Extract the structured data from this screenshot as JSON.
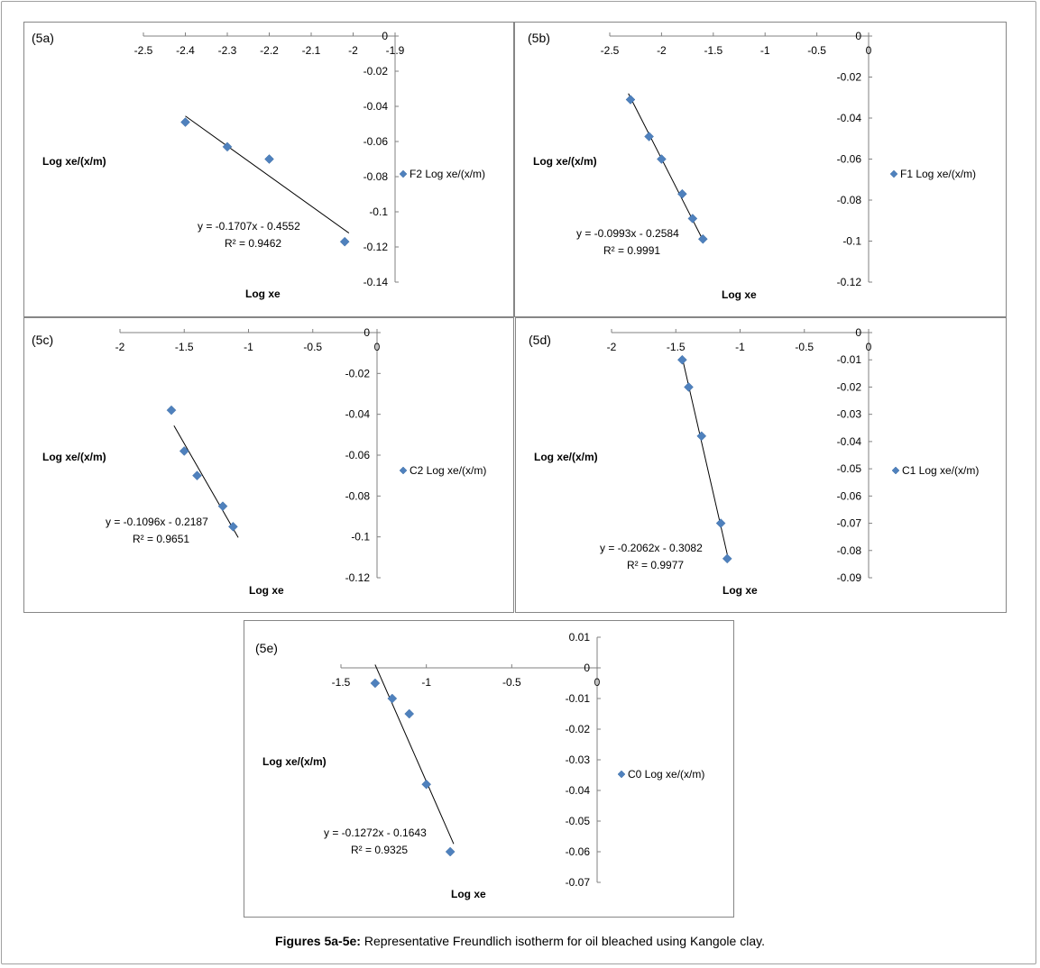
{
  "caption": {
    "label": "Figures 5a-5e:",
    "text": " Representative Freundlich isotherm for oil bleached using Kangole clay."
  },
  "colors": {
    "marker": "#4f81bd",
    "marker_stroke": "#3a6aa3",
    "axis": "#808080",
    "line": "#000000"
  },
  "chart_data": [
    {
      "id": "5a",
      "type": "scatter",
      "panel_label": "(5a)",
      "xlabel": "Log xe",
      "ylabel": "Log xe/(x/m)",
      "xlim": [
        -2.5,
        -1.9
      ],
      "ylim": [
        -0.14,
        0
      ],
      "x_ticks": [
        "-2.5",
        "-2.4",
        "-2.3",
        "-2.2",
        "-2.1",
        "-2",
        "-1.9"
      ],
      "y_ticks": [
        "0",
        "-0.02",
        "-0.04",
        "-0.06",
        "-0.08",
        "-0.1",
        "-0.12",
        "-0.14"
      ],
      "series": [
        {
          "name": "F2 Log xe/(x/m)",
          "x": [
            -2.4,
            -2.3,
            -2.2,
            -2.02
          ],
          "y": [
            -0.049,
            -0.063,
            -0.07,
            -0.117
          ]
        }
      ],
      "trendline": {
        "equation": "y = -0.1707x - 0.4552",
        "r2": "R² = 0.9462",
        "slope": -0.1707,
        "intercept": -0.4552,
        "x_range": [
          -2.4,
          -2.01
        ]
      }
    },
    {
      "id": "5b",
      "type": "scatter",
      "panel_label": "(5b)",
      "xlabel": "Log xe",
      "ylabel": "Log xe/(x/m)",
      "xlim": [
        -2.5,
        0
      ],
      "ylim": [
        -0.12,
        0
      ],
      "x_ticks": [
        "-2.5",
        "-2",
        "-1.5",
        "-1",
        "-0.5",
        "0"
      ],
      "y_ticks": [
        "0",
        "-0.02",
        "-0.04",
        "-0.06",
        "-0.08",
        "-0.1",
        "-0.12"
      ],
      "series": [
        {
          "name": "F1 Log xe/(x/m)",
          "x": [
            -2.3,
            -2.12,
            -2.0,
            -1.8,
            -1.7,
            -1.6
          ],
          "y": [
            -0.031,
            -0.049,
            -0.06,
            -0.077,
            -0.089,
            -0.099
          ]
        }
      ],
      "trendline": {
        "equation": "y = -0.0993x - 0.2584",
        "r2": "R² = 0.9991",
        "slope": -0.0993,
        "intercept": -0.2584,
        "x_range": [
          -2.32,
          -1.6
        ]
      }
    },
    {
      "id": "5c",
      "type": "scatter",
      "panel_label": "(5c)",
      "xlabel": "Log xe",
      "ylabel": "Log xe/(x/m)",
      "xlim": [
        -2,
        0
      ],
      "ylim": [
        -0.12,
        0
      ],
      "x_ticks": [
        "-2",
        "-1.5",
        "-1",
        "-0.5",
        "0"
      ],
      "y_ticks": [
        "0",
        "-0.02",
        "-0.04",
        "-0.06",
        "-0.08",
        "-0.1",
        "-0.12"
      ],
      "series": [
        {
          "name": "C2 Log xe/(x/m)",
          "x": [
            -1.6,
            -1.5,
            -1.4,
            -1.2,
            -1.12
          ],
          "y": [
            -0.038,
            -0.058,
            -0.07,
            -0.085,
            -0.095
          ]
        }
      ],
      "trendline": {
        "equation": "y = -0.1096x - 0.2187",
        "r2": "R² = 0.9651",
        "slope": -0.1096,
        "intercept": -0.2187,
        "x_range": [
          -1.58,
          -1.08
        ]
      }
    },
    {
      "id": "5d",
      "type": "scatter",
      "panel_label": "(5d)",
      "xlabel": "Log xe",
      "ylabel": "Log xe/(x/m)",
      "xlim": [
        -2,
        0
      ],
      "ylim": [
        -0.09,
        0
      ],
      "x_ticks": [
        "-2",
        "-1.5",
        "-1",
        "-0.5",
        "0"
      ],
      "y_ticks": [
        "0",
        "-0.01",
        "-0.02",
        "-0.03",
        "-0.04",
        "-0.05",
        "-0.06",
        "-0.07",
        "-0.08",
        "-0.09"
      ],
      "series": [
        {
          "name": "C1 Log xe/(x/m)",
          "x": [
            -1.45,
            -1.4,
            -1.3,
            -1.15,
            -1.1
          ],
          "y": [
            -0.01,
            -0.02,
            -0.038,
            -0.07,
            -0.083
          ]
        }
      ],
      "trendline": {
        "equation": "y = -0.2062x - 0.3082",
        "r2": "R² = 0.9977",
        "slope": -0.2062,
        "intercept": -0.3082,
        "x_range": [
          -1.45,
          -1.09
        ]
      }
    },
    {
      "id": "5e",
      "type": "scatter",
      "panel_label": "(5e)",
      "xlabel": "Log xe",
      "ylabel": "Log xe/(x/m)",
      "xlim": [
        -1.5,
        0
      ],
      "ylim": [
        -0.07,
        0.01
      ],
      "x_ticks": [
        "-1.5",
        "-1",
        "-0.5",
        "0"
      ],
      "y_ticks": [
        "0.01",
        "0",
        "-0.01",
        "-0.02",
        "-0.03",
        "-0.04",
        "-0.05",
        "-0.06",
        "-0.07"
      ],
      "series": [
        {
          "name": "C0 Log xe/(x/m)",
          "x": [
            -1.3,
            -1.2,
            -1.1,
            -1.0,
            -0.86
          ],
          "y": [
            -0.005,
            -0.01,
            -0.015,
            -0.038,
            -0.06
          ]
        }
      ],
      "trendline": {
        "equation": "y = -0.1272x - 0.1643",
        "r2": "R² = 0.9325",
        "slope": -0.1272,
        "intercept": -0.1643,
        "x_range": [
          -1.3,
          -0.84
        ]
      }
    }
  ]
}
